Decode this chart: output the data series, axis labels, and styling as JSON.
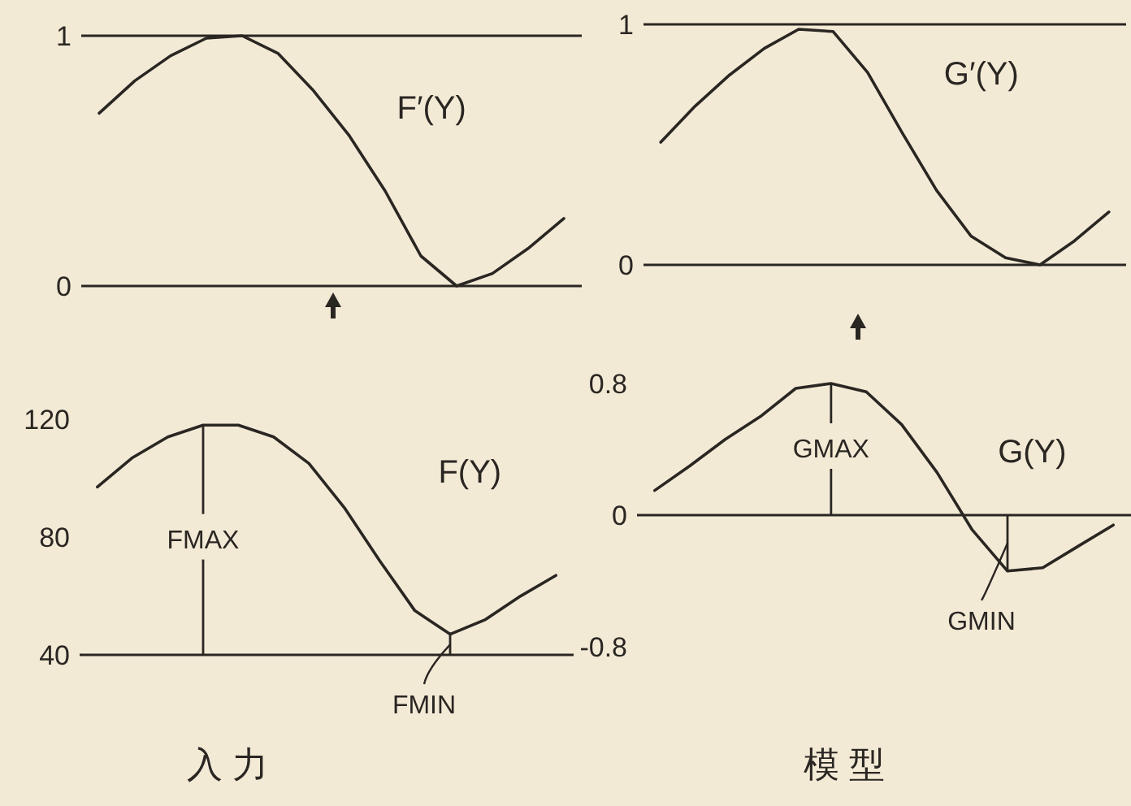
{
  "chart_data": [
    {
      "type": "line",
      "categories": [
        null,
        null,
        null,
        null,
        null,
        null,
        null,
        null,
        null,
        null,
        null,
        null,
        null,
        null
      ],
      "series": [
        {
          "name": "F′(Y)",
          "color": "#2a2622",
          "values": [
            0.69,
            0.82,
            0.92,
            0.99,
            1.0,
            0.93,
            0.78,
            0.6,
            0.38,
            0.12,
            0.0,
            0.05,
            0.15,
            0.27
          ]
        }
      ],
      "ylim": [
        0,
        1
      ],
      "yticks": [
        0,
        1
      ],
      "ref_lines": [
        {
          "axis": "y",
          "value": 1
        }
      ]
    },
    {
      "type": "line",
      "categories": [
        null,
        null,
        null,
        null,
        null,
        null,
        null,
        null,
        null,
        null,
        null,
        null,
        null,
        null
      ],
      "series": [
        {
          "name": "G′(Y)",
          "color": "#2a2622",
          "values": [
            0.51,
            0.66,
            0.79,
            0.9,
            0.98,
            0.97,
            0.8,
            0.55,
            0.31,
            0.12,
            0.03,
            0.0,
            0.1,
            0.22
          ]
        }
      ],
      "ylim": [
        0,
        1
      ],
      "yticks": [
        0,
        1
      ],
      "ref_lines": [
        {
          "axis": "y",
          "value": 1
        }
      ]
    },
    {
      "type": "line",
      "categories": [
        null,
        null,
        null,
        null,
        null,
        null,
        null,
        null,
        null,
        null,
        null,
        null,
        null,
        null
      ],
      "series": [
        {
          "name": "F(Y)",
          "color": "#2a2622",
          "values": [
            97,
            107,
            114,
            118,
            118,
            114,
            105,
            90,
            72,
            55,
            47,
            52,
            60,
            67
          ]
        }
      ],
      "ylim": [
        40,
        120
      ],
      "yticks": [
        40,
        80,
        120
      ],
      "xlabel": "入 力",
      "annotations": [
        {
          "text": "FMAX",
          "y": 118
        },
        "FMIN"
      ]
    },
    {
      "type": "line",
      "categories": [
        null,
        null,
        null,
        null,
        null,
        null,
        null,
        null,
        null,
        null,
        null,
        null,
        null,
        null
      ],
      "series": [
        {
          "name": "G(Y)",
          "color": "#2a2622",
          "values": [
            0.15,
            0.3,
            0.46,
            0.6,
            0.77,
            0.8,
            0.75,
            0.55,
            0.26,
            -0.09,
            -0.34,
            -0.32,
            -0.19,
            -0.06
          ]
        }
      ],
      "ylim": [
        -0.8,
        0.8
      ],
      "yticks": [
        -0.8,
        0,
        0.8
      ],
      "ref_lines": [
        {
          "axis": "y",
          "value": 0
        }
      ],
      "xlabel": "模 型",
      "annotations": [
        {
          "text": "GMAX",
          "y": 0.8
        },
        "GMIN"
      ]
    }
  ]
}
